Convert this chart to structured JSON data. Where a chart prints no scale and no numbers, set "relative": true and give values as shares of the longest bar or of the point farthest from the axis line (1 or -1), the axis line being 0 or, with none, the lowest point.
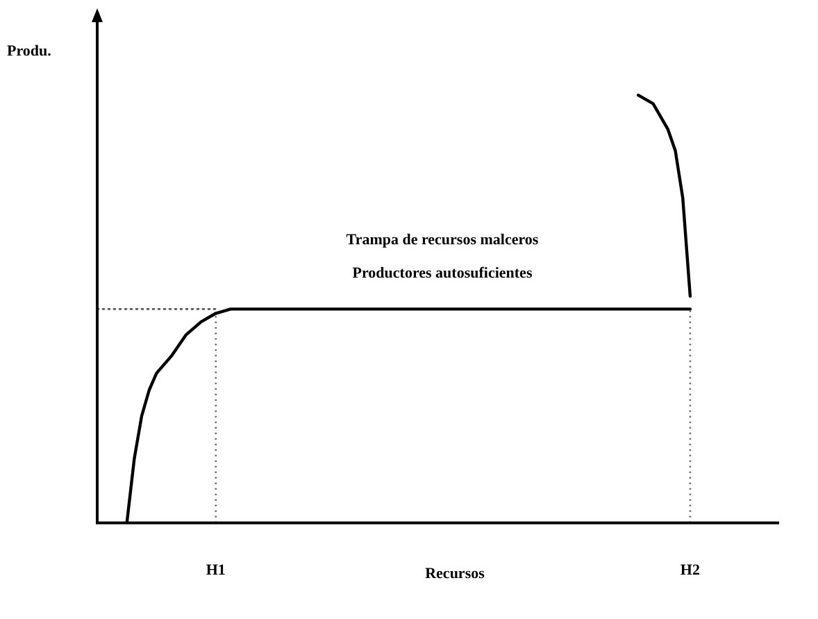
{
  "chart_data": {
    "type": "line",
    "relative": true,
    "xlabel": "Recursos",
    "ylabel": "Produ.",
    "categories": [
      null,
      null,
      null,
      null,
      null,
      null,
      null,
      null,
      null,
      null,
      null,
      null,
      null,
      null,
      null,
      null,
      "H1",
      null,
      null,
      null,
      null,
      null,
      null,
      null,
      null,
      null,
      null,
      null,
      null,
      null,
      null,
      null,
      null,
      null,
      null,
      null,
      null,
      null,
      null,
      null,
      null,
      null,
      null,
      null,
      null,
      null,
      null,
      null,
      null,
      null,
      null,
      null,
      null,
      null,
      null,
      null,
      null,
      null,
      null,
      null,
      null,
      null,
      null,
      null,
      null,
      null,
      null,
      null,
      null,
      null,
      null,
      null,
      null,
      null,
      null,
      null,
      null,
      null,
      null,
      null,
      "H2",
      null,
      null,
      null,
      null,
      null,
      null,
      null,
      null,
      null,
      null,
      null,
      null
    ],
    "annotations": [
      "Trampa de recursos malceros",
      "Productores autosuficientes"
    ],
    "legend": false,
    "marker": "none",
    "line_style": "solid",
    "ref_lines": [
      {
        "axis": "x",
        "value": "H1",
        "color": "#555555",
        "line_style": "dotted"
      },
      {
        "axis": "x",
        "value": "H2",
        "color": "#555555",
        "line_style": "dotted"
      }
    ],
    "series": [
      {
        "color": "#000000",
        "values": [
          null,
          null,
          null,
          null,
          0,
          0.15,
          0.25,
          0.31,
          0.35,
          null,
          0.39,
          null,
          0.44,
          null,
          0.47,
          null,
          0.49,
          null,
          0.5,
          null,
          null,
          null,
          null,
          null,
          null,
          null,
          null,
          null,
          null,
          null,
          null,
          null,
          null,
          null,
          null,
          null,
          null,
          null,
          null,
          null,
          null,
          null,
          null,
          null,
          null,
          null,
          null,
          null,
          null,
          null,
          null,
          null,
          null,
          null,
          null,
          null,
          null,
          null,
          null,
          null,
          null,
          null,
          null,
          null,
          null,
          null,
          null,
          null,
          null,
          null,
          null,
          null,
          null,
          null,
          null,
          null,
          null,
          null,
          null,
          null,
          0.5,
          null,
          null,
          null,
          null,
          null,
          null,
          null,
          null,
          null,
          null,
          null,
          null
        ]
      },
      {
        "color": "#000000",
        "values": [
          null,
          null,
          null,
          null,
          null,
          null,
          null,
          null,
          null,
          null,
          null,
          null,
          null,
          null,
          null,
          null,
          null,
          null,
          null,
          null,
          null,
          null,
          null,
          null,
          null,
          null,
          null,
          null,
          null,
          null,
          null,
          null,
          null,
          null,
          null,
          null,
          null,
          null,
          null,
          null,
          null,
          null,
          null,
          null,
          null,
          null,
          null,
          null,
          null,
          null,
          null,
          null,
          null,
          null,
          null,
          null,
          null,
          null,
          null,
          null,
          null,
          null,
          null,
          null,
          null,
          null,
          null,
          null,
          null,
          null,
          null,
          null,
          null,
          1,
          null,
          0.98,
          null,
          0.92,
          0.87,
          0.76,
          0.53,
          null,
          null,
          null,
          null,
          null,
          null,
          null,
          null,
          null,
          null,
          null,
          null
        ]
      },
      {
        "color": "#555555",
        "line_style": "dotted",
        "values": [
          0.5,
          null,
          null,
          null,
          null,
          null,
          null,
          null,
          null,
          null,
          null,
          null,
          null,
          null,
          null,
          null,
          0.5,
          null,
          null,
          null,
          null,
          null,
          null,
          null,
          null,
          null,
          null,
          null,
          null,
          null,
          null,
          null,
          null,
          null,
          null,
          null,
          null,
          null,
          null,
          null,
          null,
          null,
          null,
          null,
          null,
          null,
          null,
          null,
          null,
          null,
          null,
          null,
          null,
          null,
          null,
          null,
          null,
          null,
          null,
          null,
          null,
          null,
          null,
          null,
          null,
          null,
          null,
          null,
          null,
          null,
          null,
          null,
          null,
          null,
          null,
          null,
          null,
          null,
          null,
          null,
          null,
          null,
          null,
          null,
          null,
          null,
          null,
          null,
          null,
          null,
          null,
          null,
          null
        ]
      }
    ]
  }
}
